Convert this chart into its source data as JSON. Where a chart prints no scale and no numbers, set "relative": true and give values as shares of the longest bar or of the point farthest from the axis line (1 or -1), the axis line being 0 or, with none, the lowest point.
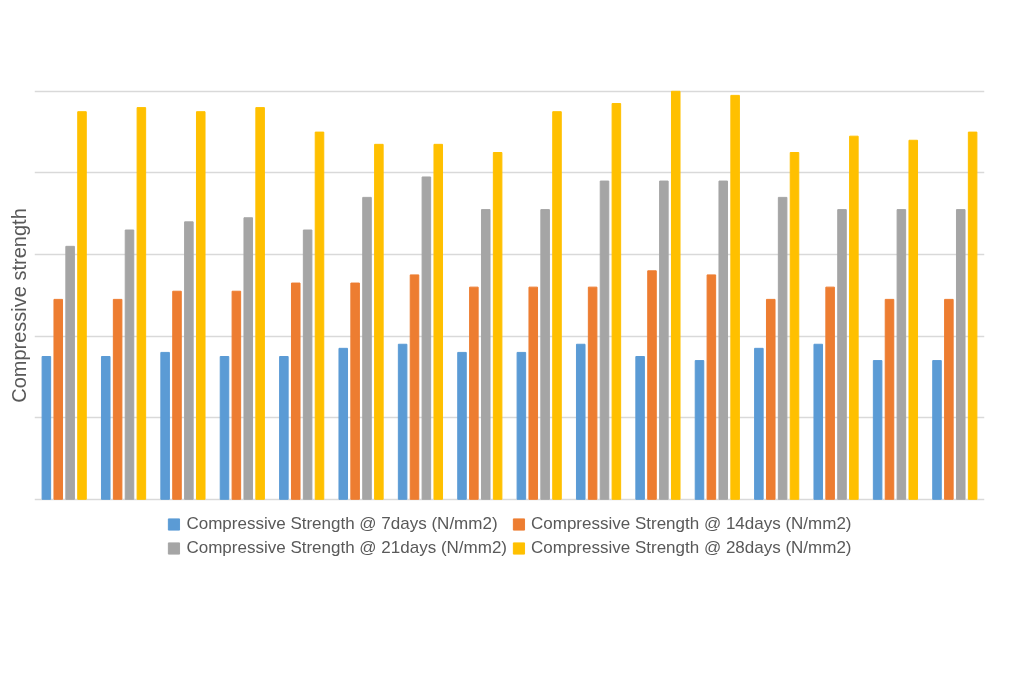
{
  "chart_data": {
    "type": "bar",
    "relative": true,
    "ylabel": "Compressive strength",
    "grid": "y",
    "legend": "bottom",
    "categories": [
      null,
      null,
      null,
      null,
      null,
      null,
      null,
      null,
      null,
      null,
      null,
      null,
      null,
      null,
      null,
      null
    ],
    "series": [
      {
        "name": "Compressive Strength @ 7days (N/mm2)",
        "color": "#5b9bd5",
        "values": [
          0.35,
          0.35,
          0.36,
          0.35,
          0.35,
          0.37,
          0.38,
          0.36,
          0.36,
          0.38,
          0.35,
          0.34,
          0.37,
          0.38,
          0.34,
          0.34
        ]
      },
      {
        "name": "Compressive Strength @ 14days (N/mm2)",
        "color": "#ed7d31",
        "values": [
          0.49,
          0.49,
          0.51,
          0.51,
          0.53,
          0.53,
          0.55,
          0.52,
          0.52,
          0.52,
          0.56,
          0.55,
          0.49,
          0.52,
          0.49,
          0.49
        ]
      },
      {
        "name": "Compressive Strength @ 21days (N/mm2)",
        "color": "#a5a5a5",
        "values": [
          0.62,
          0.66,
          0.68,
          0.69,
          0.66,
          0.74,
          0.79,
          0.71,
          0.71,
          0.78,
          0.78,
          0.78,
          0.74,
          0.71,
          0.71,
          0.71
        ]
      },
      {
        "name": "Compressive Strength @ 28days (N/mm2)",
        "color": "#ffc000",
        "values": [
          0.95,
          0.96,
          0.95,
          0.96,
          0.9,
          0.87,
          0.87,
          0.85,
          0.95,
          0.97,
          1,
          0.99,
          0.85,
          0.89,
          0.88,
          0.9
        ]
      }
    ]
  }
}
